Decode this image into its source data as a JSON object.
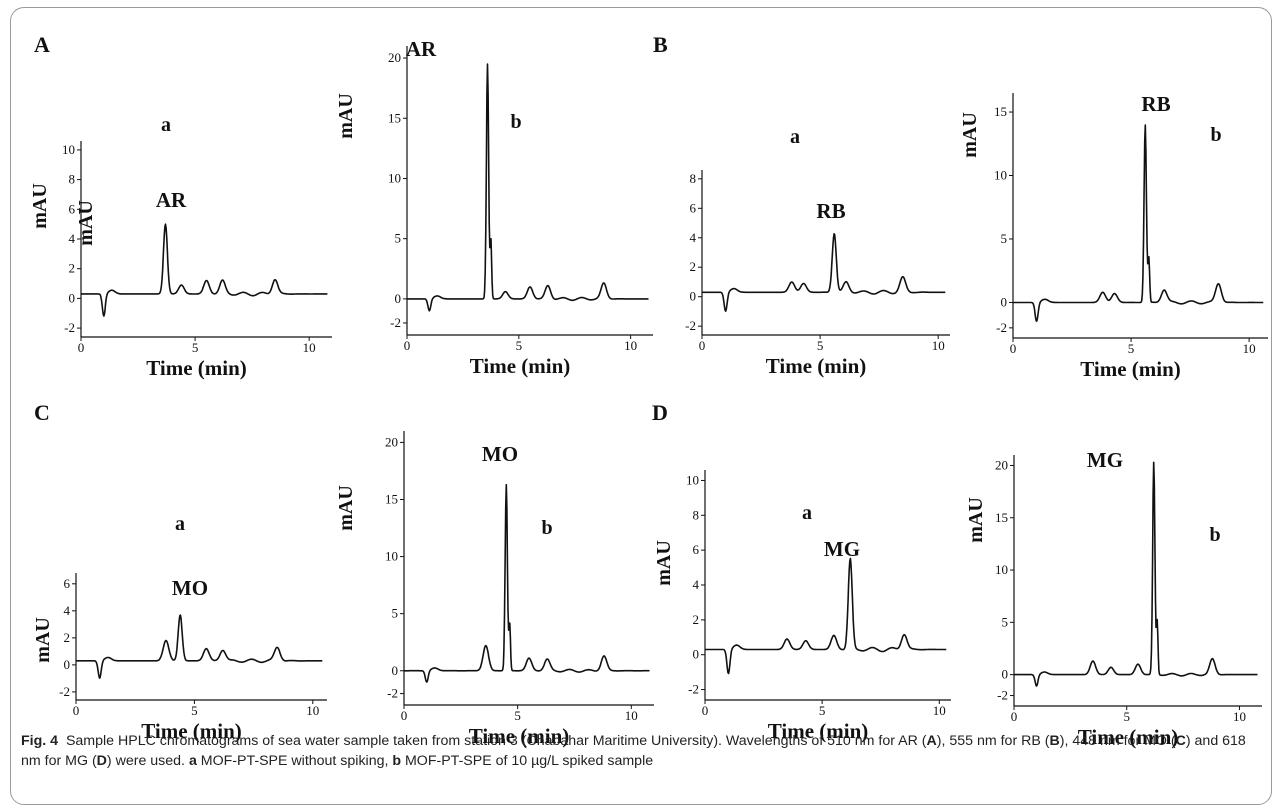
{
  "figure": {
    "caption_label": "Fig. 4",
    "caption_parts": [
      "Sample HPLC chromatograms of sea water sample taken from station 3 (Chabahar Maritime University). Wavelengths of 510 nm for AR (",
      "A",
      "), 555 nm for RB (",
      "B",
      "), 448 nm for MO (",
      "C",
      ") and 618 nm for MG (",
      "D",
      ") were used. ",
      "a",
      " MOF-PT-SPE without spiking, ",
      "b",
      " MOF-PT-SPE of 10 µg/L spiked sample"
    ]
  },
  "chart_data": [
    {
      "type": "line",
      "group": "A",
      "subpanel": "a",
      "peak_label": "AR",
      "xlabel": "Time (min)",
      "ylabel": "mAU",
      "xlim": [
        0,
        11
      ],
      "ylim": [
        -2.6,
        10.6
      ],
      "xticks": [
        0,
        5,
        10
      ],
      "yticks": [
        -2,
        0,
        2,
        4,
        6,
        8,
        10
      ],
      "baseline": 0.3,
      "dip": {
        "x": 1.0,
        "y": -1.2
      },
      "peaks": [
        {
          "x": 3.7,
          "y": 5.0
        },
        {
          "x": 4.4,
          "y": 0.9
        },
        {
          "x": 5.5,
          "y": 1.2
        },
        {
          "x": 6.2,
          "y": 1.2
        },
        {
          "x": 8.5,
          "y": 1.3
        }
      ]
    },
    {
      "type": "line",
      "group": "A",
      "subpanel": "b",
      "peak_label": "AR",
      "xlabel": "Time (min)",
      "ylabel": "mAU",
      "xlim": [
        0,
        11
      ],
      "ylim": [
        -3,
        21
      ],
      "xticks": [
        0,
        5,
        10
      ],
      "yticks": [
        -2,
        0,
        5,
        10,
        15,
        20
      ],
      "baseline": 0.0,
      "dip": {
        "x": 1.0,
        "y": -1.0
      },
      "peaks": [
        {
          "x": 3.6,
          "y": 19.5
        },
        {
          "x": 4.4,
          "y": 0.6
        },
        {
          "x": 5.5,
          "y": 1.0
        },
        {
          "x": 6.3,
          "y": 1.1
        },
        {
          "x": 8.8,
          "y": 1.3
        }
      ]
    },
    {
      "type": "line",
      "group": "B",
      "subpanel": "a",
      "peak_label": "RB",
      "xlabel": "Time (min)",
      "ylabel": "mAU",
      "xlim": [
        0,
        10.5
      ],
      "ylim": [
        -2.6,
        8.6
      ],
      "xticks": [
        0,
        5,
        10
      ],
      "yticks": [
        -2,
        0,
        2,
        4,
        6,
        8
      ],
      "baseline": 0.3,
      "dip": {
        "x": 1.0,
        "y": -1.0
      },
      "peaks": [
        {
          "x": 3.8,
          "y": 1.0
        },
        {
          "x": 4.3,
          "y": 0.9
        },
        {
          "x": 5.6,
          "y": 4.3
        },
        {
          "x": 6.1,
          "y": 1.0
        },
        {
          "x": 8.5,
          "y": 1.3
        }
      ]
    },
    {
      "type": "line",
      "group": "B",
      "subpanel": "b",
      "peak_label": "RB",
      "xlabel": "Time (min)",
      "ylabel": "mAU",
      "xlim": [
        0,
        10.8
      ],
      "ylim": [
        -2.8,
        16.5
      ],
      "xticks": [
        0,
        5,
        10
      ],
      "yticks": [
        -2,
        0,
        5,
        10,
        15
      ],
      "baseline": 0.0,
      "dip": {
        "x": 1.0,
        "y": -1.5
      },
      "peaks": [
        {
          "x": 3.8,
          "y": 0.8
        },
        {
          "x": 4.3,
          "y": 0.7
        },
        {
          "x": 5.6,
          "y": 14.0
        },
        {
          "x": 6.4,
          "y": 1.0
        },
        {
          "x": 8.7,
          "y": 1.5
        }
      ]
    },
    {
      "type": "line",
      "group": "C",
      "subpanel": "a",
      "peak_label": "MO",
      "xlabel": "Time (min)",
      "ylabel": "mAU",
      "xlim": [
        0,
        10.6
      ],
      "ylim": [
        -2.6,
        6.8
      ],
      "xticks": [
        0,
        5,
        10
      ],
      "yticks": [
        -2,
        0,
        2,
        4,
        6
      ],
      "baseline": 0.3,
      "dip": {
        "x": 1.0,
        "y": -1.0
      },
      "peaks": [
        {
          "x": 3.8,
          "y": 1.8
        },
        {
          "x": 4.4,
          "y": 3.7
        },
        {
          "x": 5.5,
          "y": 1.2
        },
        {
          "x": 6.2,
          "y": 1.1
        },
        {
          "x": 8.5,
          "y": 1.3
        }
      ]
    },
    {
      "type": "line",
      "group": "C",
      "subpanel": "b",
      "peak_label": "MO",
      "xlabel": "Time (min)",
      "ylabel": "mAU",
      "xlim": [
        0,
        11
      ],
      "ylim": [
        -3,
        21
      ],
      "xticks": [
        0,
        5,
        10
      ],
      "yticks": [
        -2,
        0,
        5,
        10,
        15,
        20
      ],
      "baseline": 0.0,
      "dip": {
        "x": 1.0,
        "y": -1.0
      },
      "peaks": [
        {
          "x": 3.6,
          "y": 2.2
        },
        {
          "x": 4.5,
          "y": 16.3
        },
        {
          "x": 5.5,
          "y": 1.1
        },
        {
          "x": 6.3,
          "y": 1.0
        },
        {
          "x": 8.8,
          "y": 1.3
        }
      ]
    },
    {
      "type": "line",
      "group": "D",
      "subpanel": "a",
      "peak_label": "MG",
      "xlabel": "Time (min)",
      "ylabel": "mAU",
      "xlim": [
        0,
        10.5
      ],
      "ylim": [
        -2.6,
        10.6
      ],
      "xticks": [
        0,
        5,
        10
      ],
      "yticks": [
        -2,
        0,
        2,
        4,
        6,
        8,
        10
      ],
      "baseline": 0.3,
      "dip": {
        "x": 1.0,
        "y": -1.1
      },
      "peaks": [
        {
          "x": 3.5,
          "y": 0.9
        },
        {
          "x": 4.3,
          "y": 0.8
        },
        {
          "x": 5.5,
          "y": 1.1
        },
        {
          "x": 6.2,
          "y": 5.5
        },
        {
          "x": 8.5,
          "y": 1.2
        }
      ]
    },
    {
      "type": "line",
      "group": "D",
      "subpanel": "b",
      "peak_label": "MG",
      "xlabel": "Time (min)",
      "ylabel": "mAU",
      "xlim": [
        0,
        11
      ],
      "ylim": [
        -3,
        21
      ],
      "xticks": [
        0,
        5,
        10
      ],
      "yticks": [
        -2,
        0,
        5,
        10,
        15,
        20
      ],
      "baseline": 0.0,
      "dip": {
        "x": 1.0,
        "y": -1.1
      },
      "peaks": [
        {
          "x": 3.5,
          "y": 1.3
        },
        {
          "x": 4.3,
          "y": 0.7
        },
        {
          "x": 5.5,
          "y": 1.0
        },
        {
          "x": 6.2,
          "y": 20.3
        },
        {
          "x": 8.8,
          "y": 1.5
        }
      ]
    }
  ]
}
